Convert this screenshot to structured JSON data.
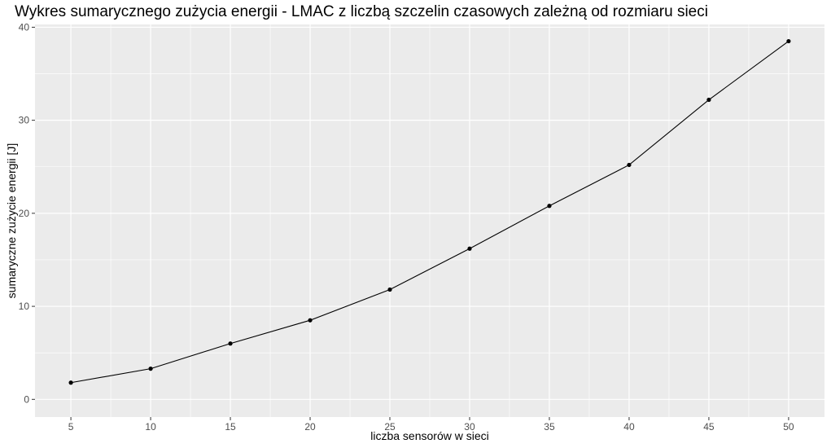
{
  "chart_data": {
    "type": "line",
    "title": "Wykres sumarycznego zużycia energii - LMAC z liczbą szczelin czasowych zależną od rozmiaru sieci",
    "xlabel": "liczba sensorów w sieci",
    "ylabel": "sumaryczne zużycie energii [J]",
    "x": [
      5,
      10,
      15,
      20,
      25,
      30,
      35,
      40,
      45,
      50
    ],
    "series": [
      {
        "name": "",
        "values": [
          1.8,
          3.3,
          6.0,
          8.5,
          11.8,
          16.2,
          20.8,
          25.2,
          32.2,
          38.5
        ]
      }
    ],
    "xlim": [
      2.75,
      52.25
    ],
    "ylim": [
      -1.9,
      40.3
    ],
    "xticks": [
      5,
      10,
      15,
      20,
      25,
      30,
      35,
      40,
      45,
      50
    ],
    "yticks": [
      0,
      10,
      20,
      30,
      40
    ],
    "grid": true,
    "legend": "none",
    "colors": {
      "panel": "#ebebeb",
      "grid": "#ffffff",
      "line": "#000000",
      "point": "#000000",
      "tick_text": "#4d4d4d"
    }
  }
}
